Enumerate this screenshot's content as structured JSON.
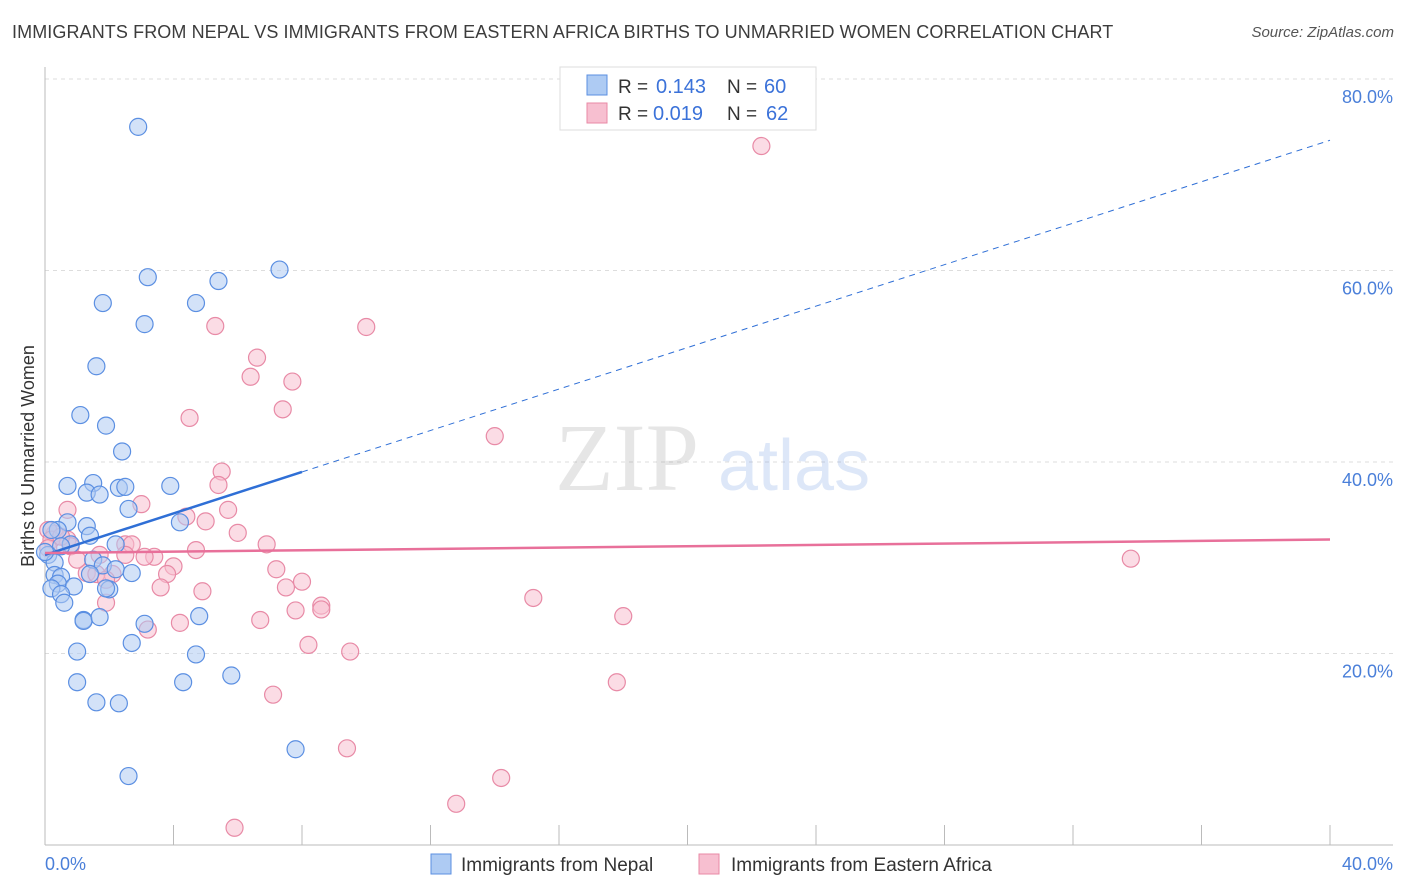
{
  "title": "IMMIGRANTS FROM NEPAL VS IMMIGRANTS FROM EASTERN AFRICA BIRTHS TO UNMARRIED WOMEN CORRELATION CHART",
  "source": "Source: ZipAtlas.com",
  "watermark": {
    "zip": "ZIP",
    "atlas": "atlas"
  },
  "colors": {
    "blue_fill": "#aecbf3",
    "blue_stroke": "#5b8fe2",
    "blue_line": "#2f6fd6",
    "pink_fill": "#f7bfd0",
    "pink_stroke": "#e88aa6",
    "pink_line": "#e8709a",
    "tick": "#4a7fd9"
  },
  "chart_data": {
    "type": "scatter",
    "title": "IMMIGRANTS FROM NEPAL VS IMMIGRANTS FROM EASTERN AFRICA BIRTHS TO UNMARRIED WOMEN CORRELATION CHART",
    "xlabel": "",
    "ylabel": "Births to Unmarried Women",
    "xlim": [
      0,
      40
    ],
    "ylim": [
      0,
      80
    ],
    "x_tick_labels": [
      "0.0%",
      "40.0%"
    ],
    "y_ticks": [
      20,
      40,
      60,
      80
    ],
    "y_tick_labels": [
      "20.0%",
      "40.0%",
      "60.0%",
      "80.0%"
    ],
    "grid": true,
    "legend": {
      "placement": "top-center",
      "rows": [
        {
          "r_label": "R =",
          "r_value": "0.143",
          "n_label": "N =",
          "n_value": "60"
        },
        {
          "r_label": "R =",
          "r_value": "0.019",
          "n_label": "N =",
          "n_value": "62"
        }
      ]
    },
    "series": [
      {
        "name": "Immigrants from Nepal",
        "trend": {
          "x0": 0,
          "y0": 30.3,
          "x1": 40,
          "y1": 73.6,
          "solid_until_x": 8.0
        },
        "points": [
          [
            2.9,
            75.0
          ],
          [
            3.2,
            59.3
          ],
          [
            5.4,
            58.9
          ],
          [
            7.3,
            60.1
          ],
          [
            1.8,
            56.6
          ],
          [
            4.7,
            56.6
          ],
          [
            3.1,
            54.4
          ],
          [
            1.6,
            50.0
          ],
          [
            1.1,
            44.9
          ],
          [
            1.9,
            43.8
          ],
          [
            2.4,
            41.1
          ],
          [
            0.7,
            37.5
          ],
          [
            1.5,
            37.8
          ],
          [
            1.3,
            36.8
          ],
          [
            1.7,
            36.6
          ],
          [
            2.3,
            37.3
          ],
          [
            2.5,
            37.4
          ],
          [
            3.9,
            37.5
          ],
          [
            2.6,
            35.1
          ],
          [
            4.2,
            33.7
          ],
          [
            0.7,
            33.7
          ],
          [
            1.3,
            33.3
          ],
          [
            0.4,
            32.9
          ],
          [
            0.8,
            31.4
          ],
          [
            0.5,
            31.2
          ],
          [
            1.4,
            32.3
          ],
          [
            2.2,
            31.4
          ],
          [
            0.1,
            30.3
          ],
          [
            0.3,
            29.5
          ],
          [
            1.5,
            29.8
          ],
          [
            1.8,
            29.2
          ],
          [
            0.3,
            28.2
          ],
          [
            0.5,
            28.0
          ],
          [
            0.4,
            27.3
          ],
          [
            2.2,
            28.8
          ],
          [
            2.7,
            28.4
          ],
          [
            2.0,
            26.7
          ],
          [
            0.2,
            26.8
          ],
          [
            0.9,
            27.0
          ],
          [
            0.5,
            26.2
          ],
          [
            0.6,
            25.3
          ],
          [
            1.2,
            23.5
          ],
          [
            1.2,
            23.4
          ],
          [
            1.7,
            23.8
          ],
          [
            3.1,
            23.1
          ],
          [
            4.8,
            23.9
          ],
          [
            2.7,
            21.1
          ],
          [
            1.0,
            20.2
          ],
          [
            4.7,
            19.9
          ],
          [
            1.0,
            17.0
          ],
          [
            4.3,
            17.0
          ],
          [
            5.8,
            17.7
          ],
          [
            1.6,
            14.9
          ],
          [
            2.3,
            14.8
          ],
          [
            7.8,
            10.0
          ],
          [
            2.6,
            7.2
          ],
          [
            1.9,
            26.8
          ],
          [
            1.4,
            28.3
          ],
          [
            0.2,
            32.9
          ],
          [
            0.0,
            30.6
          ]
        ]
      },
      {
        "name": "Immigrants from Eastern Africa",
        "trend": {
          "x0": 0,
          "y0": 30.5,
          "x1": 40,
          "y1": 31.9,
          "solid_until_x": 40
        },
        "points": [
          [
            22.3,
            73.0
          ],
          [
            10.0,
            54.1
          ],
          [
            5.3,
            54.2
          ],
          [
            6.6,
            50.9
          ],
          [
            6.4,
            48.9
          ],
          [
            7.7,
            48.4
          ],
          [
            7.4,
            45.5
          ],
          [
            4.5,
            44.6
          ],
          [
            14.0,
            42.7
          ],
          [
            5.5,
            39.0
          ],
          [
            5.4,
            37.6
          ],
          [
            3.0,
            35.6
          ],
          [
            5.7,
            35.0
          ],
          [
            0.7,
            35.0
          ],
          [
            5.0,
            33.8
          ],
          [
            4.4,
            34.3
          ],
          [
            6.0,
            32.6
          ],
          [
            6.9,
            31.4
          ],
          [
            0.3,
            32.5
          ],
          [
            0.7,
            31.9
          ],
          [
            0.8,
            31.2
          ],
          [
            2.5,
            31.4
          ],
          [
            2.7,
            31.4
          ],
          [
            1.7,
            30.3
          ],
          [
            3.4,
            30.1
          ],
          [
            3.1,
            30.1
          ],
          [
            4.7,
            30.8
          ],
          [
            4.0,
            29.1
          ],
          [
            7.2,
            28.8
          ],
          [
            3.8,
            28.3
          ],
          [
            2.1,
            28.3
          ],
          [
            8.0,
            27.5
          ],
          [
            1.3,
            28.4
          ],
          [
            1.6,
            28.3
          ],
          [
            3.6,
            26.9
          ],
          [
            4.9,
            26.5
          ],
          [
            7.5,
            26.9
          ],
          [
            15.2,
            25.8
          ],
          [
            1.9,
            25.3
          ],
          [
            8.6,
            25.0
          ],
          [
            8.6,
            24.6
          ],
          [
            7.8,
            24.5
          ],
          [
            18.0,
            23.9
          ],
          [
            4.2,
            23.2
          ],
          [
            3.2,
            22.5
          ],
          [
            6.7,
            23.5
          ],
          [
            8.2,
            20.9
          ],
          [
            9.5,
            20.2
          ],
          [
            33.8,
            29.9
          ],
          [
            17.8,
            17.0
          ],
          [
            7.1,
            15.7
          ],
          [
            9.4,
            10.1
          ],
          [
            14.2,
            7.0
          ],
          [
            12.8,
            4.3
          ],
          [
            5.9,
            1.8
          ],
          [
            0.1,
            32.9
          ],
          [
            0.2,
            31.9
          ],
          [
            0.5,
            32.2
          ],
          [
            0.1,
            31.0
          ],
          [
            1.0,
            29.8
          ],
          [
            1.9,
            27.7
          ],
          [
            2.5,
            30.3
          ]
        ]
      }
    ]
  }
}
